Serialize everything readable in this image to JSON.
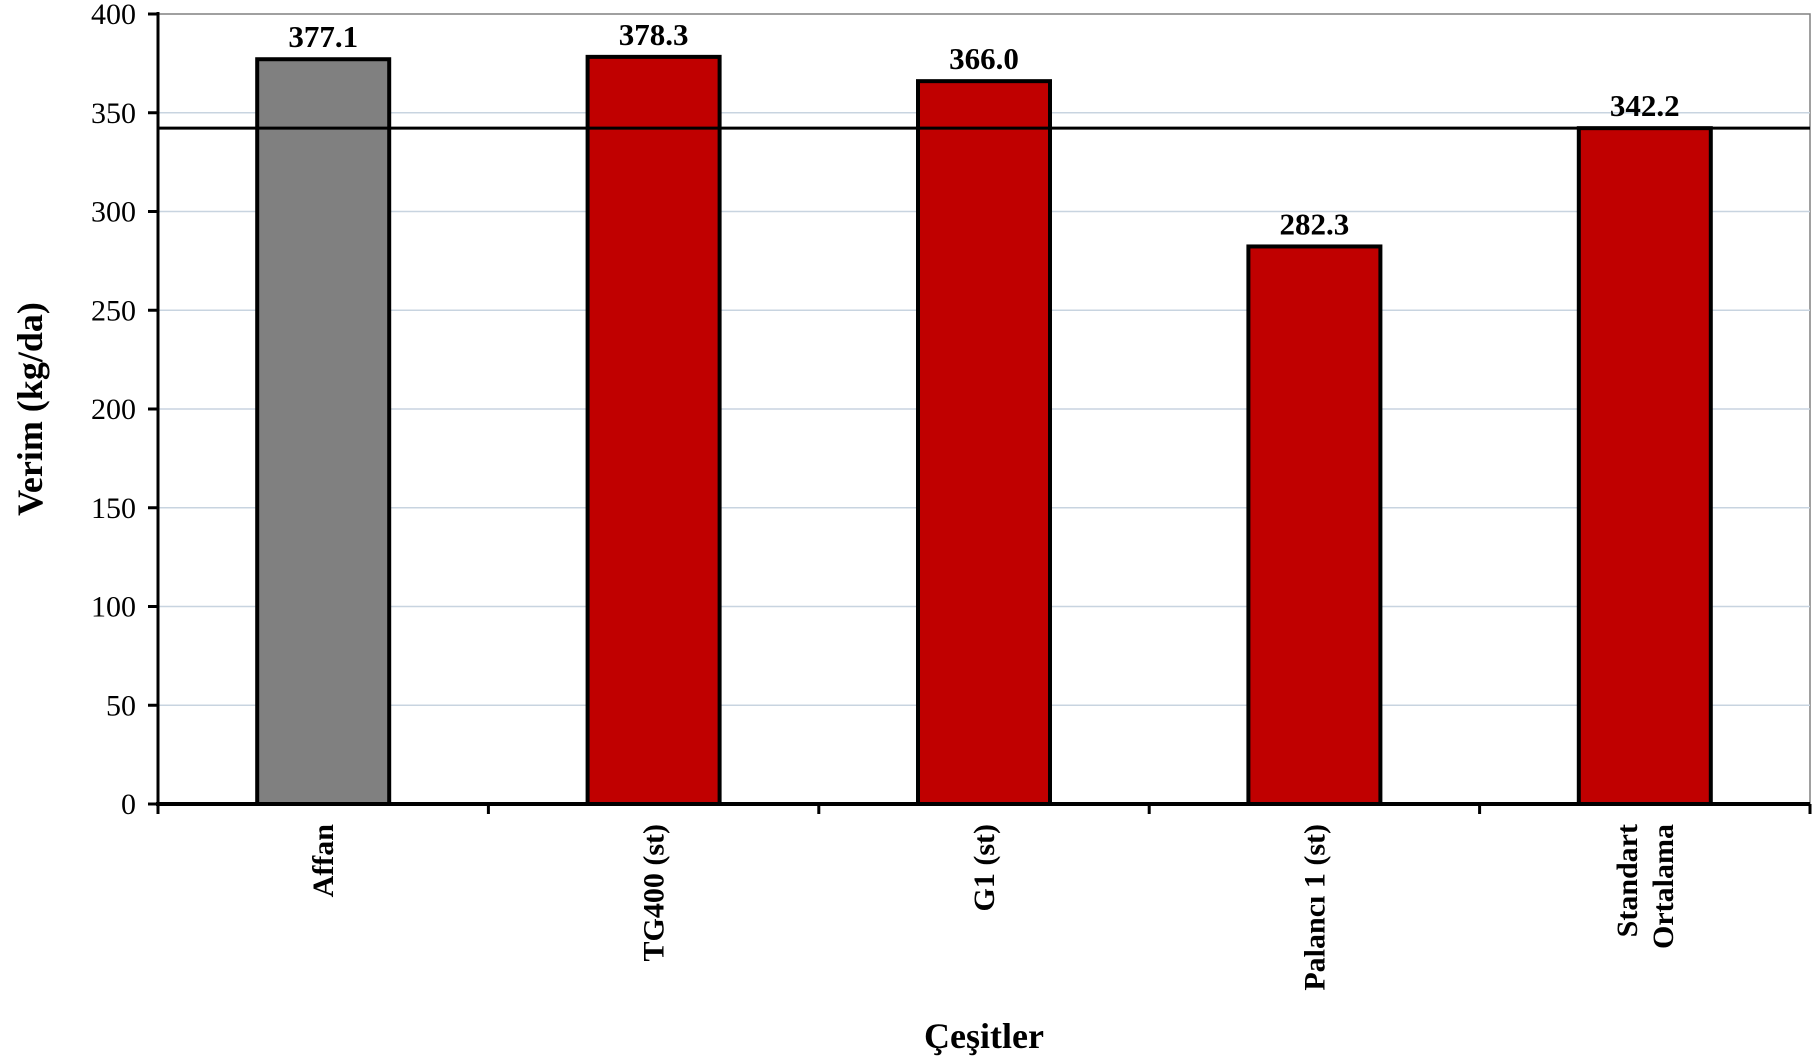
{
  "chart_data": {
    "type": "bar",
    "title": "",
    "xlabel": "Çeşitler",
    "ylabel": "Verim (kg/da)",
    "ylim": [
      0,
      400
    ],
    "yticks": [
      0,
      50,
      100,
      150,
      200,
      250,
      300,
      350,
      400
    ],
    "grid": true,
    "legend": "none",
    "categories": [
      [
        "Affan"
      ],
      [
        "TG400 (st)"
      ],
      [
        "G1 (st)"
      ],
      [
        "Palancı 1 (st)"
      ],
      [
        "Standart",
        "Ortalama"
      ]
    ],
    "values": [
      377.1,
      378.3,
      366.0,
      282.3,
      342.2
    ],
    "data_labels": [
      "377.1",
      "378.3",
      "366.0",
      "282.3",
      "342.2"
    ],
    "bar_colors": [
      "#808080",
      "#c00000",
      "#c00000",
      "#c00000",
      "#c00000"
    ],
    "reference_line": 342.2,
    "colors": {
      "grid": "#c8d4e0",
      "axis": "#000000",
      "border": "#808080"
    }
  }
}
